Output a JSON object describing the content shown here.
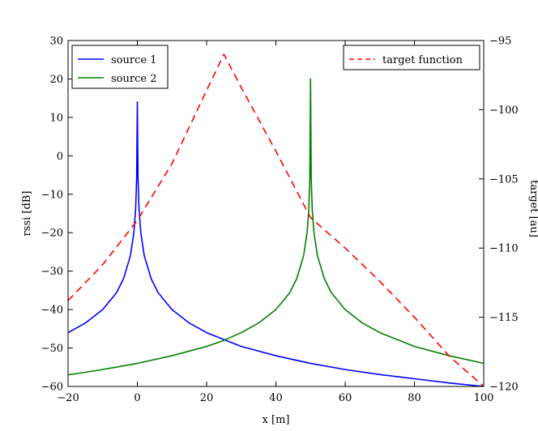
{
  "chart_data": {
    "type": "line",
    "title": "",
    "xlabel": "x [m]",
    "ylabel": "rssi [dB]",
    "y2label": "target [au]",
    "xlim": [
      -20,
      100
    ],
    "ylim": [
      -60,
      30
    ],
    "y2lim": [
      -120,
      -95
    ],
    "x_ticks": [
      -20,
      0,
      20,
      40,
      60,
      80,
      100
    ],
    "y_ticks": [
      -60,
      -50,
      -40,
      -30,
      -20,
      -10,
      0,
      10,
      20,
      30
    ],
    "y2_ticks": [
      -120,
      -115,
      -110,
      -105,
      -100,
      -95
    ],
    "x_tick_labels": [
      "−20",
      "0",
      "20",
      "40",
      "60",
      "80",
      "100"
    ],
    "y_tick_labels": [
      "−60",
      "−50",
      "−40",
      "−30",
      "−20",
      "−10",
      "0",
      "10",
      "20",
      "30"
    ],
    "y2_tick_labels": [
      "−120",
      "−115",
      "−110",
      "−105",
      "−100",
      "−95"
    ],
    "grid": false,
    "series": [
      {
        "name": "source 1",
        "axis": "left",
        "color": "#0000ff",
        "style": "solid",
        "peak": {
          "x": 0,
          "y": 14
        },
        "x": [
          -20,
          -15,
          -10,
          -6,
          -4,
          -2,
          -1,
          -0.5,
          -0.2,
          0,
          0.2,
          0.5,
          1,
          2,
          4,
          6,
          10,
          15,
          20,
          30,
          40,
          50,
          60,
          70,
          80,
          90,
          100
        ],
        "values": [
          -46,
          -43.5,
          -40,
          -35.6,
          -32,
          -26,
          -20,
          -14,
          -6,
          14,
          -6,
          -14,
          -20,
          -26,
          -32,
          -35.6,
          -40,
          -43.5,
          -46,
          -49.6,
          -52,
          -54,
          -55.6,
          -56.9,
          -58,
          -59.1,
          -60
        ]
      },
      {
        "name": "source 2",
        "axis": "left",
        "color": "#008000",
        "style": "solid",
        "peak": {
          "x": 50,
          "y": 20
        },
        "x": [
          -20,
          -10,
          0,
          10,
          20,
          25,
          30,
          35,
          40,
          44,
          46,
          48,
          49,
          49.5,
          49.8,
          50,
          50.2,
          50.5,
          51,
          52,
          54,
          56,
          60,
          65,
          70,
          80,
          90,
          100
        ],
        "values": [
          -57,
          -55.6,
          -54,
          -52,
          -49.6,
          -48,
          -46,
          -43.5,
          -40,
          -35.6,
          -32,
          -26,
          -20,
          -14,
          -6,
          20,
          -6,
          -14,
          -20,
          -26,
          -32,
          -35.6,
          -40,
          -43.5,
          -46,
          -49.6,
          -52,
          -54
        ]
      },
      {
        "name": "target function",
        "axis": "right",
        "color": "#ff0000",
        "style": "dashed",
        "x": [
          -20,
          -10,
          0,
          10,
          20,
          25,
          30,
          40,
          50,
          60,
          70,
          80,
          90,
          100
        ],
        "values": [
          -113.8,
          -111.2,
          -108.0,
          -103.9,
          -98.6,
          -96.0,
          -98.4,
          -103.0,
          -107.8,
          -110.0,
          -112.4,
          -115.0,
          -117.8,
          -120.0
        ]
      }
    ],
    "legends": [
      {
        "position": "top-left",
        "entries": [
          "source 1",
          "source 2"
        ]
      },
      {
        "position": "top-right",
        "entries": [
          "target function"
        ]
      }
    ]
  }
}
